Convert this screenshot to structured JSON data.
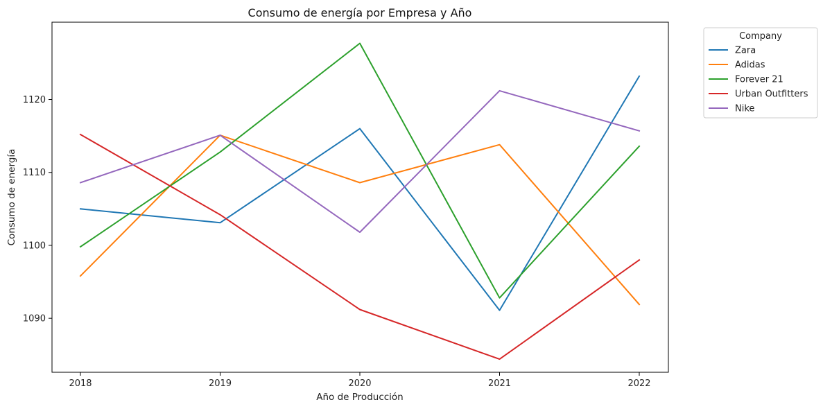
{
  "chart_data": {
    "type": "line",
    "title": "Consumo de energía por Empresa y Año",
    "xlabel": "Año de Producción",
    "ylabel": "Consumo de energía",
    "x": [
      2018,
      2019,
      2020,
      2021,
      2022
    ],
    "x_tick_labels": [
      "2018",
      "2019",
      "2020",
      "2021",
      "2022"
    ],
    "y_ticks": [
      1090,
      1100,
      1110,
      1120
    ],
    "y_tick_labels": [
      "1090",
      "1100",
      "1110",
      "1120"
    ],
    "ylim": [
      1082.6,
      1130.6
    ],
    "grid": false,
    "legend": {
      "title": "Company",
      "placement": "outside-top-right"
    },
    "series": [
      {
        "name": "Zara",
        "color": "#1f77b4",
        "values": [
          1105.0,
          1103.1,
          1116.0,
          1091.1,
          1123.2
        ]
      },
      {
        "name": "Adidas",
        "color": "#ff7f0e",
        "values": [
          1095.8,
          1115.1,
          1108.6,
          1113.8,
          1091.9
        ]
      },
      {
        "name": "Forever 21",
        "color": "#2ca02c",
        "values": [
          1099.8,
          1112.8,
          1127.7,
          1092.8,
          1113.6
        ]
      },
      {
        "name": "Urban Outfitters",
        "color": "#d62728",
        "values": [
          1115.2,
          1104.2,
          1091.2,
          1084.4,
          1098.0
        ]
      },
      {
        "name": "Nike",
        "color": "#9467bd",
        "values": [
          1108.6,
          1115.1,
          1101.8,
          1121.2,
          1115.7
        ]
      }
    ]
  }
}
